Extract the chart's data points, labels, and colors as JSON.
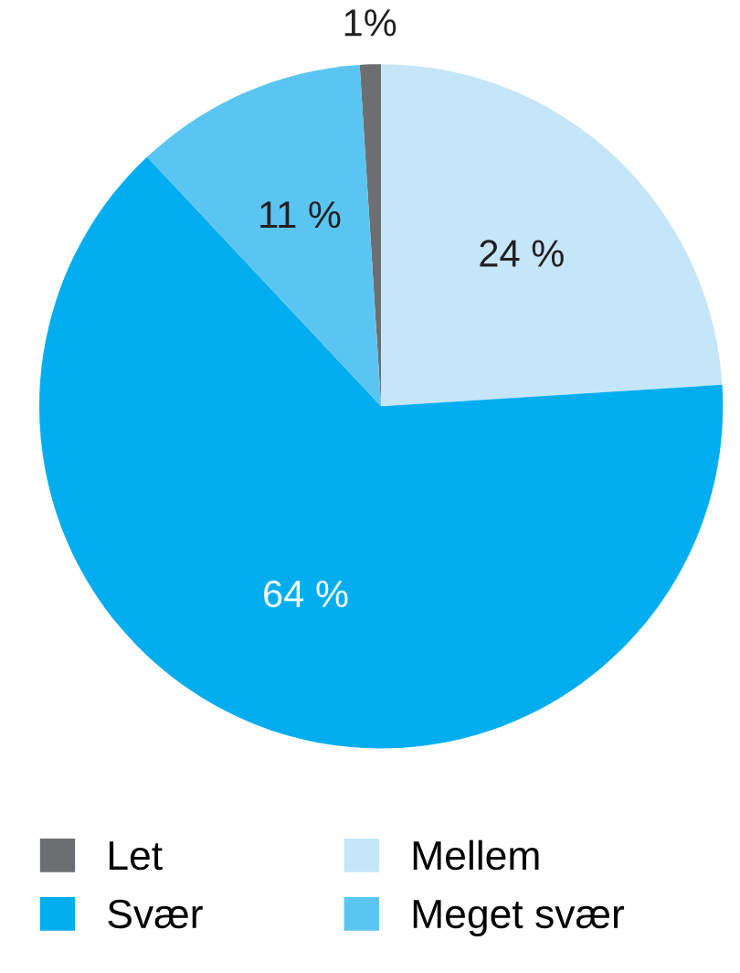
{
  "chart_data": {
    "type": "pie",
    "categories": [
      "Let",
      "Mellem",
      "Svær",
      "Meget svær"
    ],
    "values": [
      1,
      24,
      64,
      11
    ],
    "colors": [
      "#6d6e71",
      "#c5e6f8",
      "#00aeef",
      "#5bc5f2"
    ],
    "value_labels": [
      "1%",
      "24 %",
      "64 %",
      "11 %"
    ],
    "legend": "bottom"
  }
}
